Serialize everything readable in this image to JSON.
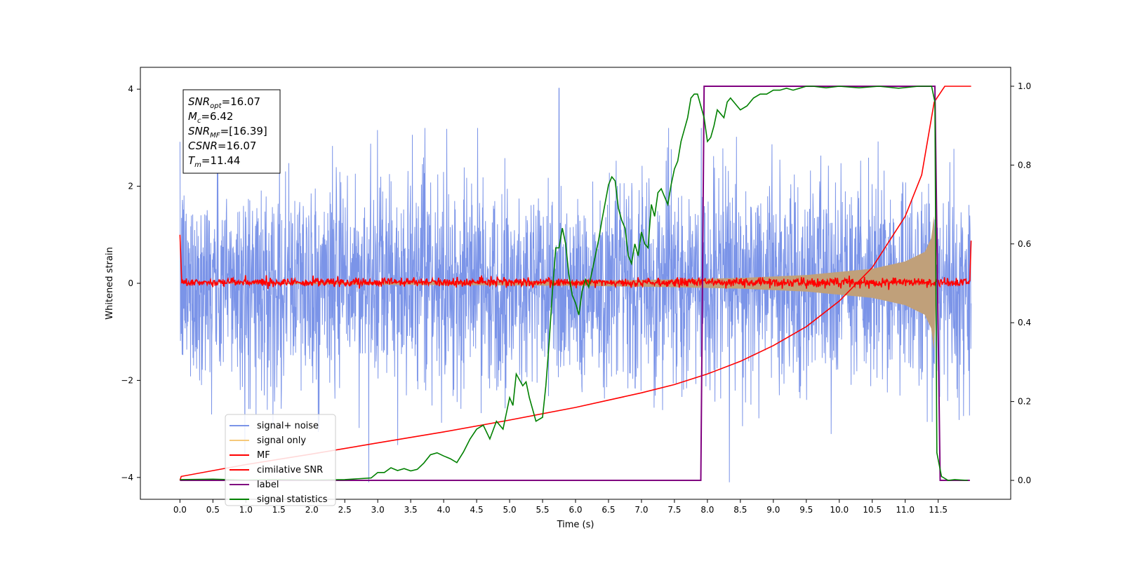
{
  "chart_data": {
    "type": "line",
    "xlabel": "Time (s)",
    "ylabel": "Whitened strain",
    "xlim": [
      -0.6,
      12.6
    ],
    "ylim": [
      -4.45,
      4.45
    ],
    "y2lim": [
      -0.048,
      1.048
    ],
    "x_ticks": [
      "0.0",
      "0.5",
      "1.0",
      "1.5",
      "2.0",
      "2.5",
      "3.0",
      "3.5",
      "4.0",
      "4.5",
      "5.0",
      "5.5",
      "6.0",
      "6.5",
      "7.0",
      "7.5",
      "8.0",
      "8.5",
      "9.0",
      "9.5",
      "10.0",
      "10.5",
      "11.0",
      "11.5"
    ],
    "y_ticks": [
      "-4",
      "-2",
      "0",
      "2",
      "4"
    ],
    "y2_ticks": [
      "0.0",
      "0.2",
      "0.4",
      "0.6",
      "0.8",
      "1.0"
    ],
    "grid": false,
    "legend_position": "lower-left",
    "annotation": {
      "lines": [
        {
          "sym": "SNR",
          "sub": "opt",
          "val": "=16.07"
        },
        {
          "sym": "M",
          "sub": "c",
          "val": "=6.42"
        },
        {
          "sym": "SNR",
          "sub": "MF",
          "val": "=[16.39]"
        },
        {
          "sym": "CSNR",
          "sub": "",
          "val": "=16.07"
        },
        {
          "sym": "T",
          "sub": "m",
          "val": "=11.44"
        }
      ]
    },
    "series": [
      {
        "name": "signal+ noise",
        "color": "#7b94e8",
        "description_axis": "left",
        "amplitude_envelope": 1.5,
        "peak": [
          5.75,
          4.02
        ]
      },
      {
        "name": "signal only",
        "color": "#f5c97a",
        "axis": "left",
        "envelope_x": [
          0.0,
          3.0,
          6.0,
          7.5,
          8.5,
          9.5,
          10.5,
          11.0,
          11.3,
          11.4,
          11.44,
          11.47
        ],
        "envelope_y": [
          0.0,
          0.03,
          0.05,
          0.08,
          0.11,
          0.17,
          0.3,
          0.45,
          0.65,
          0.95,
          1.5,
          0.0
        ]
      },
      {
        "name": "MF",
        "color": "#ff0000",
        "axis": "left",
        "baseline": 0.02,
        "edge_start": 1.0,
        "edge_end": 0.88
      },
      {
        "name": "cimilative SNR",
        "color": "#ff0000",
        "axis": "right",
        "x": [
          0.0,
          0.02,
          1.0,
          2.0,
          3.0,
          4.0,
          5.0,
          6.0,
          7.0,
          7.5,
          8.0,
          8.5,
          9.0,
          9.5,
          10.0,
          10.5,
          11.0,
          11.25,
          11.44,
          11.6,
          12.0
        ],
        "y": [
          0.0,
          0.01,
          0.04,
          0.067,
          0.095,
          0.123,
          0.153,
          0.185,
          0.222,
          0.243,
          0.27,
          0.302,
          0.342,
          0.39,
          0.455,
          0.54,
          0.67,
          0.775,
          0.96,
          1.0,
          1.0
        ]
      },
      {
        "name": "label",
        "color": "#800080",
        "axis": "right",
        "x": [
          0.0,
          7.9,
          7.95,
          11.45,
          11.53,
          11.98
        ],
        "y": [
          0.0,
          0.0,
          1.0,
          1.0,
          0.0,
          0.0
        ]
      },
      {
        "name": "signal statistics",
        "color": "#008000",
        "axis": "right",
        "x": [
          0.0,
          0.5,
          1.0,
          1.5,
          2.0,
          2.5,
          2.9,
          3.0,
          3.1,
          3.2,
          3.3,
          3.4,
          3.5,
          3.6,
          3.7,
          3.8,
          3.9,
          4.0,
          4.1,
          4.2,
          4.3,
          4.4,
          4.5,
          4.6,
          4.7,
          4.8,
          4.9,
          5.0,
          5.05,
          5.1,
          5.2,
          5.25,
          5.3,
          5.4,
          5.5,
          5.55,
          5.6,
          5.65,
          5.7,
          5.75,
          5.8,
          5.85,
          5.9,
          5.95,
          6.0,
          6.05,
          6.1,
          6.15,
          6.2,
          6.3,
          6.35,
          6.4,
          6.5,
          6.55,
          6.6,
          6.65,
          6.7,
          6.75,
          6.8,
          6.85,
          6.9,
          6.95,
          7.0,
          7.05,
          7.1,
          7.15,
          7.2,
          7.25,
          7.3,
          7.35,
          7.4,
          7.45,
          7.5,
          7.55,
          7.6,
          7.65,
          7.7,
          7.75,
          7.8,
          7.85,
          7.9,
          7.95,
          8.0,
          8.05,
          8.1,
          8.15,
          8.2,
          8.25,
          8.3,
          8.35,
          8.4,
          8.5,
          8.6,
          8.7,
          8.8,
          8.9,
          9.0,
          9.1,
          9.2,
          9.3,
          9.4,
          9.5,
          9.6,
          9.8,
          10.0,
          10.3,
          10.6,
          10.9,
          11.2,
          11.4,
          11.45,
          11.48,
          11.55,
          11.65,
          11.75,
          11.85,
          11.95
        ],
        "y": [
          0.002,
          0.003,
          0.001,
          0.002,
          0.001,
          0.002,
          0.006,
          0.02,
          0.02,
          0.032,
          0.025,
          0.03,
          0.024,
          0.028,
          0.044,
          0.065,
          0.07,
          0.062,
          0.055,
          0.045,
          0.072,
          0.105,
          0.13,
          0.14,
          0.105,
          0.15,
          0.13,
          0.21,
          0.19,
          0.27,
          0.24,
          0.25,
          0.21,
          0.15,
          0.16,
          0.24,
          0.35,
          0.48,
          0.59,
          0.59,
          0.64,
          0.6,
          0.52,
          0.47,
          0.45,
          0.42,
          0.48,
          0.51,
          0.49,
          0.57,
          0.61,
          0.66,
          0.75,
          0.77,
          0.76,
          0.69,
          0.66,
          0.64,
          0.57,
          0.55,
          0.6,
          0.57,
          0.63,
          0.6,
          0.59,
          0.7,
          0.67,
          0.73,
          0.74,
          0.72,
          0.7,
          0.75,
          0.79,
          0.81,
          0.86,
          0.89,
          0.92,
          0.97,
          0.98,
          0.98,
          0.95,
          0.92,
          0.86,
          0.87,
          0.9,
          0.94,
          0.93,
          0.92,
          0.96,
          0.97,
          0.96,
          0.94,
          0.95,
          0.97,
          0.98,
          0.98,
          0.99,
          0.99,
          0.995,
          0.99,
          0.995,
          1.0,
          1.0,
          0.996,
          1.0,
          0.996,
          1.0,
          0.995,
          1.0,
          1.0,
          0.96,
          0.07,
          0.01,
          0.0,
          0.002,
          0.001,
          0.0
        ]
      }
    ]
  },
  "colors": {
    "noise": "#7b94e8",
    "signal": "#f5c97a",
    "signal_overlay": "#c0a07a",
    "mf": "#ff0000",
    "label": "#800080",
    "statistics": "#008000"
  }
}
